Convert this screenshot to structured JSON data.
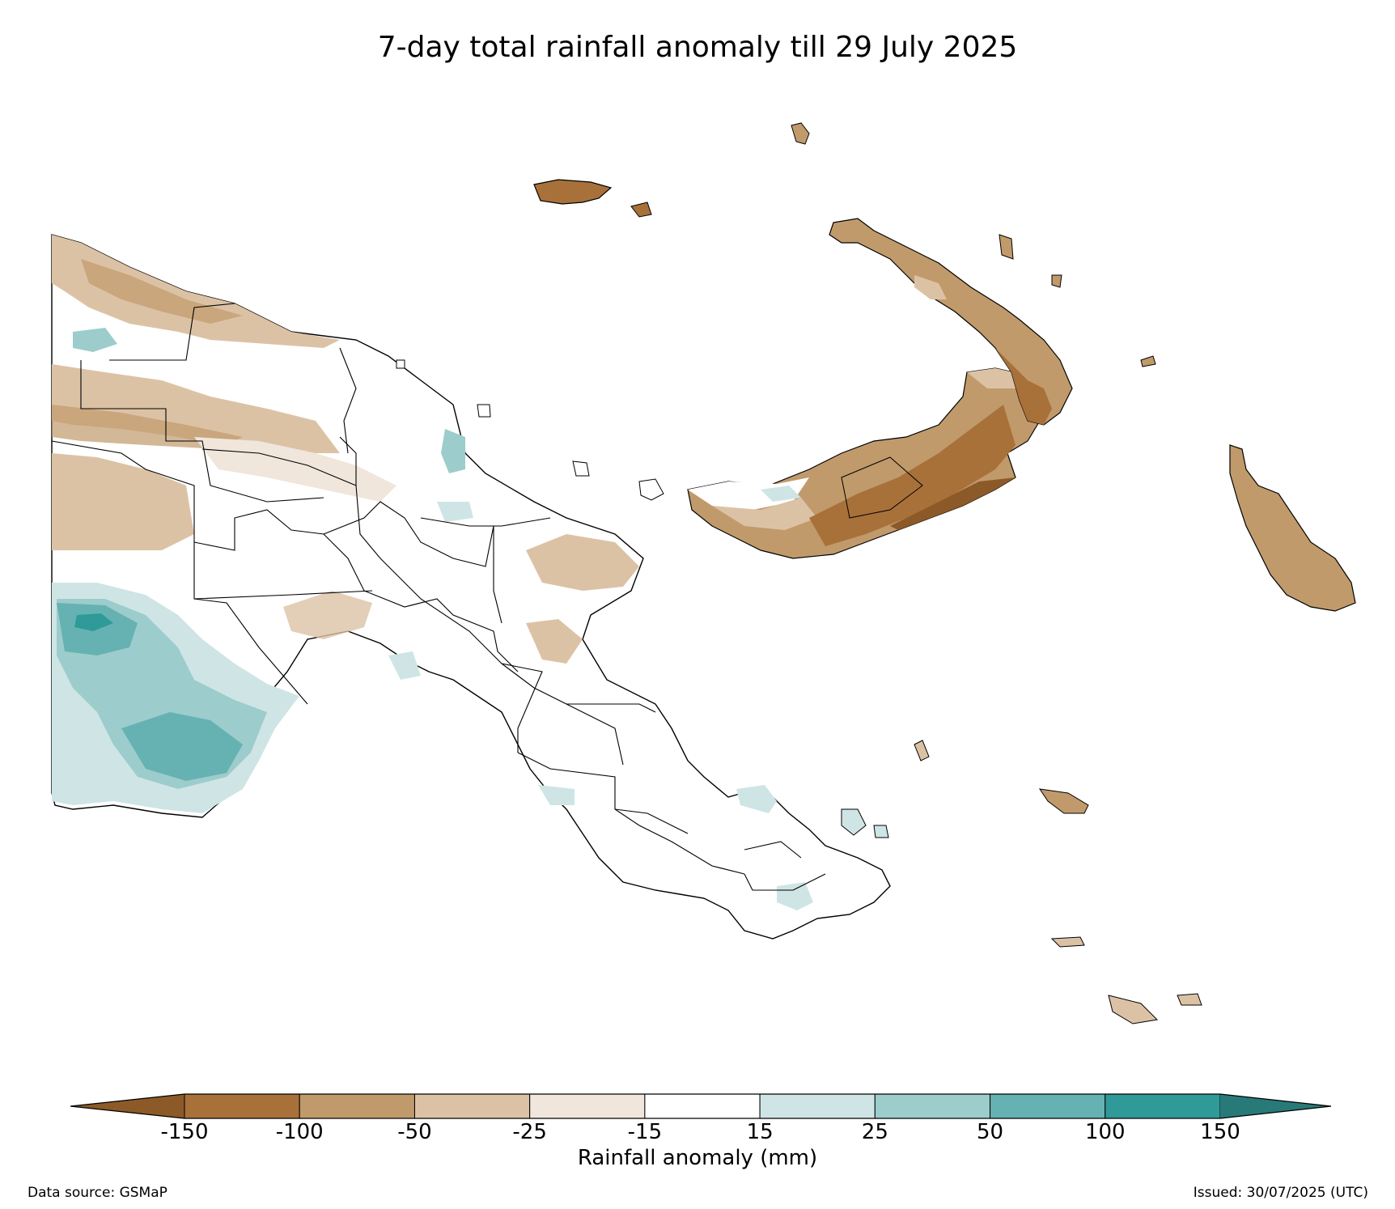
{
  "title": "7-day total rainfall anomaly till 29 July 2025",
  "colorbar": {
    "label": "Rainfall anomaly (mm)",
    "ticks": [
      "-150",
      "-100",
      "-50",
      "-25",
      "-15",
      "15",
      "25",
      "50",
      "100",
      "150"
    ],
    "extend": "both",
    "colors": {
      "below_min": "#8c5a28",
      "bins": [
        "#a8713a",
        "#c19a6b",
        "#dcc2a5",
        "#f0e6dc",
        "#ffffff",
        "#cfe5e5",
        "#9dcccc",
        "#66b2b2",
        "#2f9a97"
      ],
      "above_max": "#277a78"
    }
  },
  "footer": {
    "source": "Data source: GSMaP",
    "issued": "Issued: 30/07/2025 (UTC)"
  }
}
